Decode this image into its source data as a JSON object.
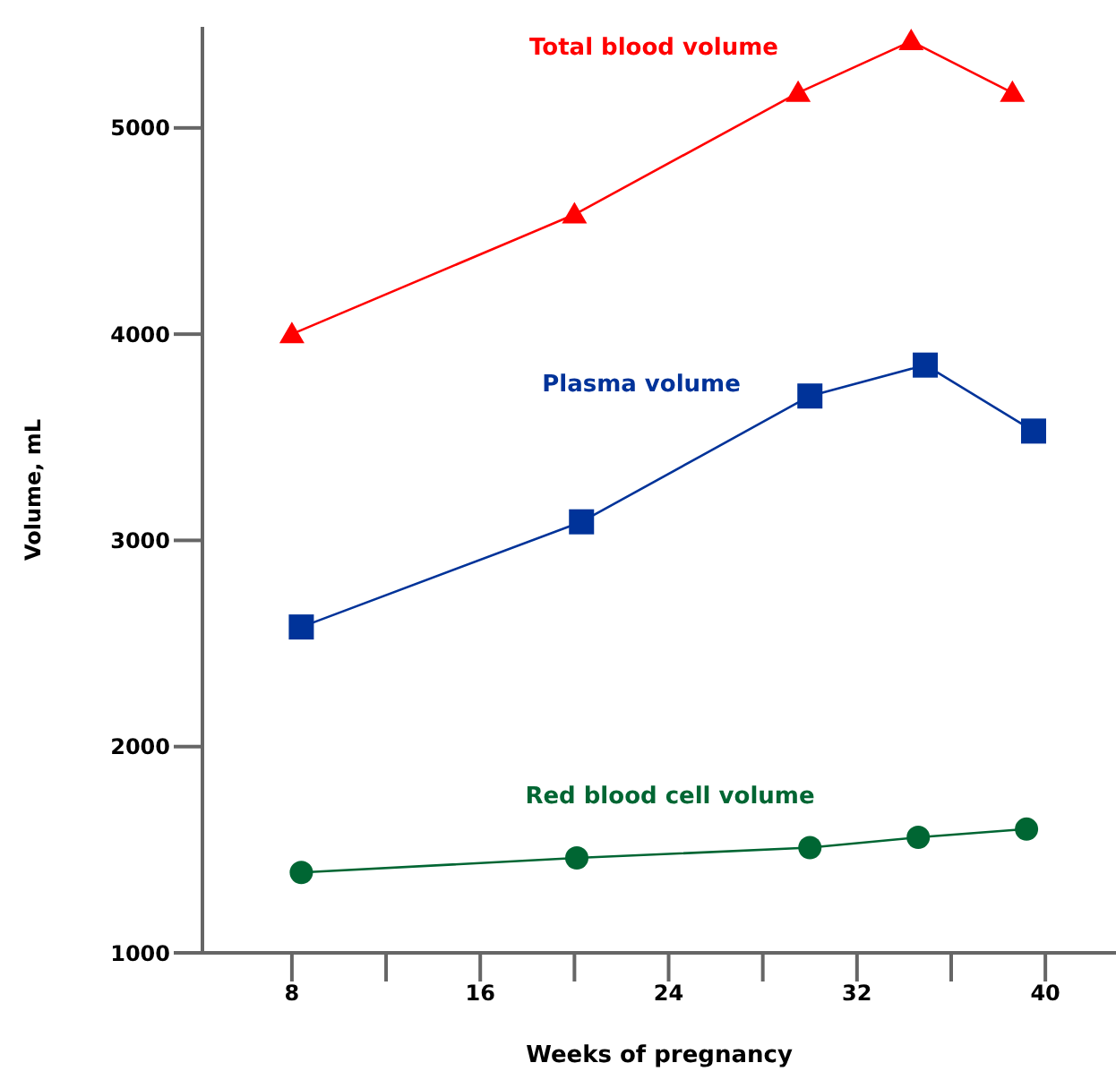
{
  "chart_data": {
    "type": "line",
    "xlabel": "Weeks of pregnancy",
    "ylabel": "Volume, mL",
    "xlim": [
      4.2,
      43
    ],
    "ylim": [
      1000,
      5490
    ],
    "xticks": [
      8,
      {
        "value": 12,
        "label": null
      },
      16,
      {
        "value": 20,
        "label": null
      },
      24,
      {
        "value": 28,
        "label": null
      },
      32,
      {
        "value": 36,
        "label": null
      },
      40
    ],
    "yticks": [
      1000,
      2000,
      3000,
      4000,
      5000
    ],
    "grid": false,
    "line_style": "solid",
    "series": [
      {
        "name": "Total blood volume",
        "color": "#ff0000",
        "marker": "triangle",
        "x": [
          8,
          20,
          29.5,
          34.3,
          38.6
        ],
        "values": [
          4000,
          4580,
          5170,
          5420,
          5170
        ]
      },
      {
        "name": "Plasma volume",
        "color": "#003399",
        "marker": "square",
        "x": [
          8.4,
          20.3,
          30,
          34.9,
          39.5
        ],
        "values": [
          2580,
          3090,
          3700,
          3850,
          3530
        ]
      },
      {
        "name": "Red blood cell volume",
        "color": "#006633",
        "marker": "circle",
        "x": [
          8.4,
          20.1,
          30,
          34.6,
          39.2
        ],
        "values": [
          1390,
          1460,
          1510,
          1560,
          1600
        ]
      }
    ]
  }
}
